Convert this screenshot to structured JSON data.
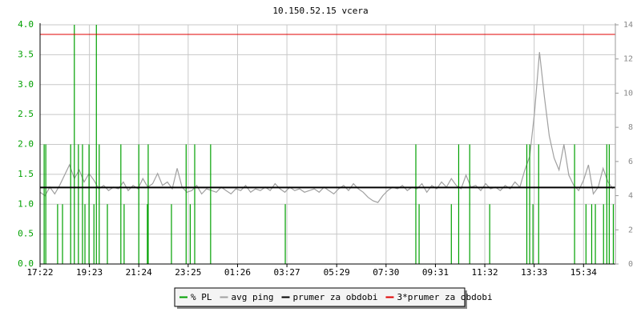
{
  "chart_data": {
    "type": "line",
    "title": "10.150.52.15 vcera",
    "xlim": [
      0,
      1410
    ],
    "xticks": [
      {
        "value": 0,
        "label": "17:22"
      },
      {
        "value": 121,
        "label": "19:23"
      },
      {
        "value": 242,
        "label": "21:24"
      },
      {
        "value": 363,
        "label": "23:25"
      },
      {
        "value": 484,
        "label": "01:26"
      },
      {
        "value": 605,
        "label": "03:27"
      },
      {
        "value": 727,
        "label": "05:29"
      },
      {
        "value": 848,
        "label": "07:30"
      },
      {
        "value": 969,
        "label": "09:31"
      },
      {
        "value": 1090,
        "label": "11:32"
      },
      {
        "value": 1211,
        "label": "13:33"
      },
      {
        "value": 1332,
        "label": "15:34"
      }
    ],
    "ylim": [
      0,
      4
    ],
    "yticks": [
      {
        "value": 0,
        "label": "0.0"
      },
      {
        "value": 0.5,
        "label": "0.5"
      },
      {
        "value": 1,
        "label": "1.0"
      },
      {
        "value": 1.5,
        "label": "1.5"
      },
      {
        "value": 2,
        "label": "2.0"
      },
      {
        "value": 2.5,
        "label": "2.5"
      },
      {
        "value": 3,
        "label": "3.0"
      },
      {
        "value": 3.5,
        "label": "3.5"
      },
      {
        "value": 4,
        "label": "4.0"
      }
    ],
    "y2lim": [
      0,
      14
    ],
    "y2ticks": [
      0,
      2,
      4,
      6,
      8,
      10,
      12,
      14
    ],
    "grid": true,
    "series": [
      {
        "name": "% PL",
        "color": "#00a000",
        "kind": "spikes",
        "x": [
          10,
          14,
          43,
          55,
          75,
          84,
          94,
          104,
          110,
          120,
          132,
          138,
          145,
          165,
          198,
          206,
          242,
          263,
          265,
          322,
          358,
          368,
          379,
          418,
          601,
          921,
          929,
          1008,
          1026,
          1053,
          1102,
          1193,
          1200,
          1208,
          1222,
          1310,
          1338,
          1352,
          1361,
          1381,
          1389,
          1395,
          1405
        ],
        "values": [
          2,
          2,
          1,
          1,
          2,
          4,
          2,
          2,
          1,
          2,
          1,
          4,
          2,
          1,
          2,
          1,
          2,
          1,
          2,
          1,
          2,
          1,
          2,
          2,
          1,
          2,
          1,
          1,
          2,
          2,
          1,
          2,
          2,
          1,
          2,
          2,
          1,
          1,
          1,
          1,
          2,
          2,
          1
        ]
      },
      {
        "name": "avg ping",
        "color": "#a0a0a0",
        "axis": "y2",
        "x": [
          0,
          12,
          24,
          36,
          48,
          60,
          72,
          84,
          96,
          108,
          120,
          132,
          144,
          156,
          168,
          180,
          192,
          204,
          216,
          228,
          240,
          252,
          264,
          276,
          288,
          300,
          312,
          324,
          336,
          348,
          360,
          372,
          384,
          396,
          408,
          420,
          432,
          444,
          456,
          468,
          480,
          492,
          504,
          516,
          528,
          540,
          552,
          564,
          576,
          588,
          600,
          612,
          624,
          636,
          648,
          660,
          672,
          684,
          696,
          708,
          720,
          732,
          744,
          756,
          768,
          780,
          792,
          804,
          816,
          828,
          840,
          852,
          864,
          876,
          888,
          900,
          912,
          924,
          936,
          948,
          960,
          972,
          984,
          996,
          1008,
          1020,
          1032,
          1044,
          1056,
          1068,
          1080,
          1092,
          1104,
          1116,
          1128,
          1140,
          1152,
          1164,
          1176,
          1188,
          1200,
          1212,
          1224,
          1236,
          1248,
          1260,
          1272,
          1284,
          1296,
          1308,
          1320,
          1332,
          1344,
          1356,
          1368,
          1380,
          1392,
          1404
        ],
        "values": [
          4.2,
          4.0,
          4.5,
          4.1,
          4.6,
          5.2,
          5.8,
          5.0,
          5.5,
          4.8,
          5.3,
          4.9,
          4.4,
          4.6,
          4.3,
          4.5,
          4.4,
          4.8,
          4.3,
          4.6,
          4.4,
          5.0,
          4.5,
          4.7,
          5.3,
          4.6,
          4.8,
          4.4,
          5.6,
          4.5,
          4.2,
          4.3,
          4.6,
          4.1,
          4.4,
          4.3,
          4.2,
          4.5,
          4.3,
          4.1,
          4.4,
          4.3,
          4.6,
          4.2,
          4.4,
          4.3,
          4.5,
          4.3,
          4.7,
          4.4,
          4.2,
          4.5,
          4.3,
          4.4,
          4.2,
          4.3,
          4.4,
          4.2,
          4.5,
          4.3,
          4.1,
          4.4,
          4.6,
          4.3,
          4.7,
          4.4,
          4.2,
          3.9,
          3.7,
          3.6,
          4.0,
          4.3,
          4.5,
          4.4,
          4.6,
          4.3,
          4.5,
          4.4,
          4.7,
          4.2,
          4.6,
          4.4,
          4.8,
          4.5,
          5.0,
          4.6,
          4.4,
          5.2,
          4.5,
          4.6,
          4.3,
          4.7,
          4.4,
          4.5,
          4.3,
          4.6,
          4.4,
          4.8,
          4.5,
          5.5,
          6.3,
          8.9,
          12.4,
          9.8,
          7.5,
          6.2,
          5.5,
          7.0,
          5.2,
          4.6,
          4.3,
          4.9,
          5.8,
          4.1,
          4.5,
          5.6,
          4.8,
          4.4
        ]
      },
      {
        "name": "prumer za obdobi",
        "color": "#000000",
        "kind": "hline",
        "axis": "y2",
        "values": [
          4.48
        ]
      },
      {
        "name": "3*prumer za obdobi",
        "color": "#e00000",
        "kind": "hline",
        "axis": "y2",
        "values": [
          13.44
        ]
      }
    ]
  }
}
